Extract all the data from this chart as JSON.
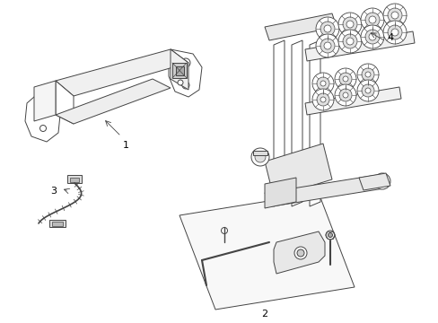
{
  "background_color": "#ffffff",
  "line_color": "#444444",
  "label_color": "#000000",
  "fig_width": 4.89,
  "fig_height": 3.6,
  "dpi": 100
}
